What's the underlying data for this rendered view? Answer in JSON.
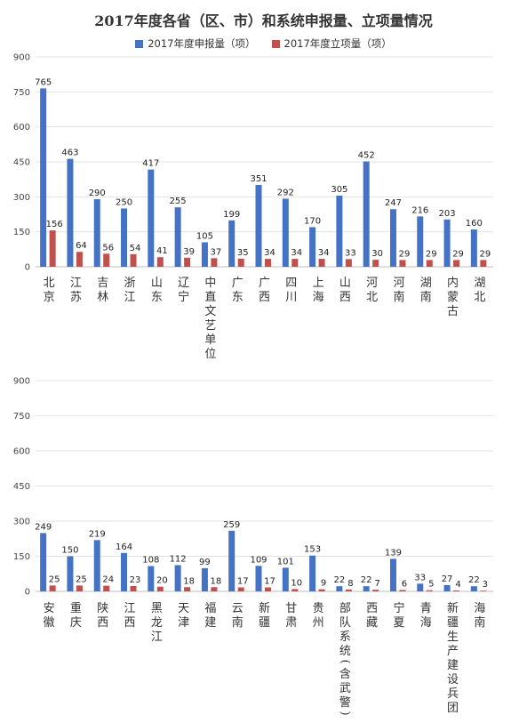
{
  "chart_data": [
    {
      "type": "bar",
      "title": "2017年度各省（区、市）和系统申报量、立项量情况",
      "legend_position": "top",
      "ylim": [
        0,
        900
      ],
      "yticks": [
        0,
        150,
        300,
        450,
        600,
        750,
        900
      ],
      "grid": true,
      "categories": [
        "北京",
        "江苏",
        "吉林",
        "浙江",
        "山东",
        "辽宁",
        "中直文艺单位",
        "广东",
        "广西",
        "四川",
        "上海",
        "山西",
        "河北",
        "河南",
        "湖南",
        "内蒙古",
        "湖北"
      ],
      "series": [
        {
          "name": "2017年度申报量（项）",
          "color": "#4472C4",
          "values": [
            765,
            463,
            290,
            250,
            417,
            255,
            105,
            199,
            351,
            292,
            170,
            305,
            452,
            247,
            216,
            203,
            160
          ]
        },
        {
          "name": "2017年度立项量（项）",
          "color": "#C0504D",
          "values": [
            156,
            64,
            56,
            54,
            41,
            39,
            37,
            35,
            34,
            34,
            34,
            33,
            30,
            29,
            29,
            29,
            29
          ]
        }
      ]
    },
    {
      "type": "bar",
      "ylim": [
        0,
        900
      ],
      "yticks": [
        0,
        150,
        300,
        450,
        600,
        750,
        900
      ],
      "grid": true,
      "categories": [
        "安徽",
        "重庆",
        "陕西",
        "江西",
        "黑龙江",
        "天津",
        "福建",
        "云南",
        "新疆",
        "甘肃",
        "贵州",
        "部队系统（含武警）",
        "西藏",
        "宁夏",
        "青海",
        "新疆生产建设兵团",
        "海南"
      ],
      "series": [
        {
          "name": "2017年度申报量（项）",
          "color": "#4472C4",
          "values": [
            249,
            150,
            219,
            164,
            108,
            112,
            99,
            259,
            109,
            101,
            153,
            22,
            22,
            139,
            33,
            27,
            22
          ]
        },
        {
          "name": "2017年度立项量（项）",
          "color": "#C0504D",
          "values": [
            25,
            25,
            24,
            23,
            20,
            18,
            18,
            17,
            17,
            10,
            9,
            8,
            7,
            6,
            5,
            4,
            3
          ]
        }
      ]
    }
  ]
}
